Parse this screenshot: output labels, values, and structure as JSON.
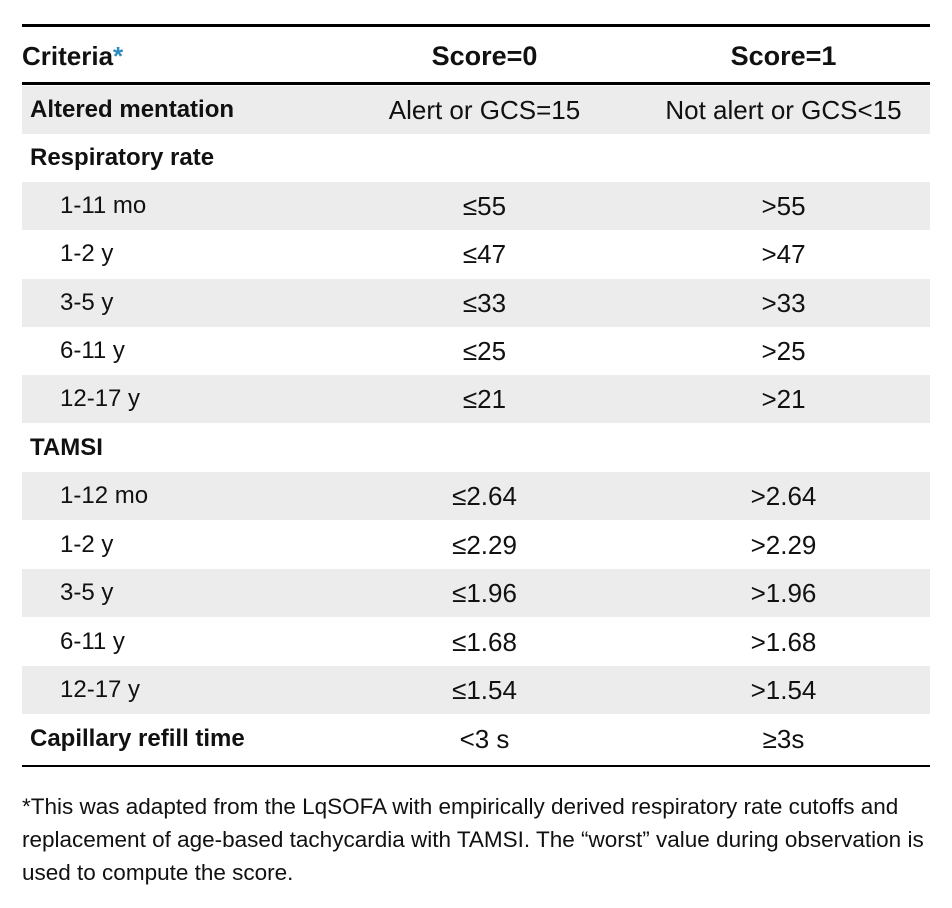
{
  "header": {
    "criteria": "Criteria",
    "asterisk": "*",
    "score0": "Score=0",
    "score1": "Score=1"
  },
  "rows": [
    {
      "label": "Altered mentation",
      "s0": "Alert or GCS=15",
      "s1": "Not alert or GCS<15"
    },
    {
      "label": "Respiratory rate",
      "s0": "",
      "s1": ""
    },
    {
      "label": "1-11 mo",
      "s0": "≤55",
      "s1": ">55"
    },
    {
      "label": "1-2 y",
      "s0": "≤47",
      "s1": ">47"
    },
    {
      "label": "3-5 y",
      "s0": "≤33",
      "s1": ">33"
    },
    {
      "label": "6-11 y",
      "s0": "≤25",
      "s1": ">25"
    },
    {
      "label": "12-17 y",
      "s0": "≤21",
      "s1": ">21"
    },
    {
      "label": "TAMSI",
      "s0": "",
      "s1": ""
    },
    {
      "label": "1-12 mo",
      "s0": "≤2.64",
      "s1": ">2.64"
    },
    {
      "label": "1-2 y",
      "s0": "≤2.29",
      "s1": ">2.29"
    },
    {
      "label": "3-5 y",
      "s0": "≤1.96",
      "s1": ">1.96"
    },
    {
      "label": "6-11 y",
      "s0": "≤1.68",
      "s1": ">1.68"
    },
    {
      "label": "12-17 y",
      "s0": "≤1.54",
      "s1": ">1.54"
    },
    {
      "label": "Capillary refill time",
      "s0": "<3 s",
      "s1": "≥3s"
    }
  ],
  "footnote": "*This was adapted from the LqSOFA with empirically derived respiratory rate cutoffs and replacement of age-based tachycardia with TAMSI. The “worst” value during observation is used to compute the score.",
  "colors": {
    "shade": "#ececec",
    "asterisk": "#2e8bc0"
  }
}
